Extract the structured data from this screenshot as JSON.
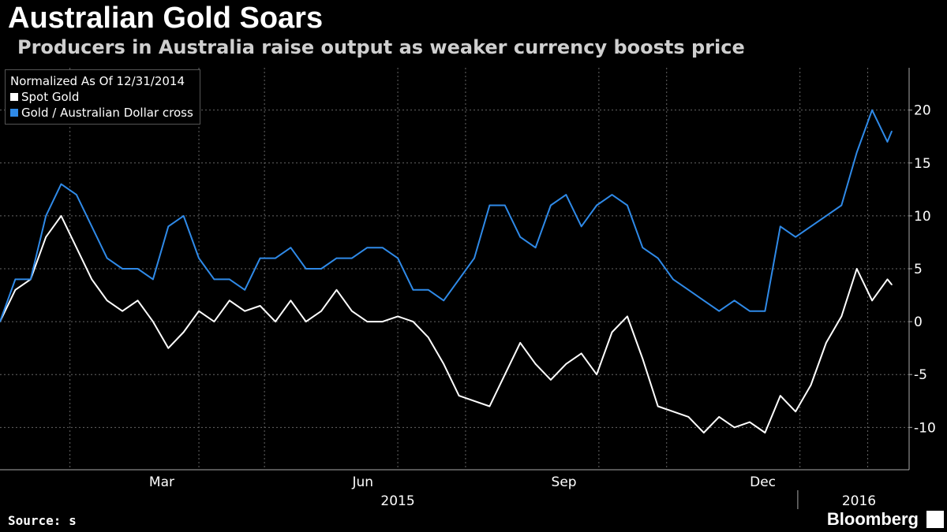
{
  "header": {
    "title": "Australian Gold Soars",
    "subtitle": "Producers in Australia raise output as weaker currency boosts price"
  },
  "footer": {
    "source": "Source: s",
    "brand": "Bloomberg"
  },
  "chart_data": {
    "type": "line",
    "legend_title": "Normalized As Of 12/31/2014",
    "legend_position": "top-left",
    "grid": true,
    "x_months": [
      "Mar",
      "Jun",
      "Sep",
      "Dec"
    ],
    "x_years": [
      "2015",
      "2016"
    ],
    "xlim": [
      "2014-12-31",
      "2016-02-12"
    ],
    "ylim": [
      -14,
      24
    ],
    "y_ticks": [
      -10,
      -5,
      0,
      5,
      10,
      15,
      20
    ],
    "colors": {
      "spot_gold": "#ffffff",
      "gold_aud": "#2f8ae8",
      "grid": "#666666",
      "background": "#000000"
    },
    "series": [
      {
        "name": "Spot Gold",
        "x": [
          "2014-12-31",
          "2015-01-07",
          "2015-01-14",
          "2015-01-21",
          "2015-01-28",
          "2015-02-04",
          "2015-02-11",
          "2015-02-18",
          "2015-02-25",
          "2015-03-04",
          "2015-03-11",
          "2015-03-18",
          "2015-03-25",
          "2015-04-01",
          "2015-04-08",
          "2015-04-15",
          "2015-04-22",
          "2015-04-29",
          "2015-05-06",
          "2015-05-13",
          "2015-05-20",
          "2015-05-27",
          "2015-06-03",
          "2015-06-10",
          "2015-06-17",
          "2015-06-24",
          "2015-07-01",
          "2015-07-08",
          "2015-07-15",
          "2015-07-22",
          "2015-07-29",
          "2015-08-05",
          "2015-08-12",
          "2015-08-19",
          "2015-08-26",
          "2015-09-02",
          "2015-09-09",
          "2015-09-16",
          "2015-09-23",
          "2015-09-30",
          "2015-10-07",
          "2015-10-14",
          "2015-10-21",
          "2015-10-28",
          "2015-11-04",
          "2015-11-11",
          "2015-11-18",
          "2015-11-25",
          "2015-12-02",
          "2015-12-09",
          "2015-12-16",
          "2015-12-23",
          "2015-12-30",
          "2016-01-06",
          "2016-01-13",
          "2016-01-20",
          "2016-01-27",
          "2016-02-03",
          "2016-02-10",
          "2016-02-12"
        ],
        "values": [
          0,
          3,
          4,
          8,
          10,
          7,
          4,
          2,
          1,
          2,
          0,
          -2.5,
          -1,
          1,
          0,
          2,
          1,
          1.5,
          0,
          2,
          0,
          1,
          3,
          1,
          0,
          0,
          0.5,
          0,
          -1.5,
          -4,
          -7,
          -7.5,
          -8,
          -5,
          -2,
          -4,
          -5.5,
          -4,
          -3,
          -5,
          -1,
          0.5,
          -3.5,
          -8,
          -8.5,
          -9,
          -10.5,
          -9,
          -10,
          -9.5,
          -10.5,
          -7,
          -8.5,
          -6,
          -2,
          0.5,
          5,
          2,
          4,
          3.5
        ]
      },
      {
        "name": "Gold / Australian Dollar cross",
        "x": [
          "2014-12-31",
          "2015-01-07",
          "2015-01-14",
          "2015-01-21",
          "2015-01-28",
          "2015-02-04",
          "2015-02-11",
          "2015-02-18",
          "2015-02-25",
          "2015-03-04",
          "2015-03-11",
          "2015-03-18",
          "2015-03-25",
          "2015-04-01",
          "2015-04-08",
          "2015-04-15",
          "2015-04-22",
          "2015-04-29",
          "2015-05-06",
          "2015-05-13",
          "2015-05-20",
          "2015-05-27",
          "2015-06-03",
          "2015-06-10",
          "2015-06-17",
          "2015-06-24",
          "2015-07-01",
          "2015-07-08",
          "2015-07-15",
          "2015-07-22",
          "2015-07-29",
          "2015-08-05",
          "2015-08-12",
          "2015-08-19",
          "2015-08-26",
          "2015-09-02",
          "2015-09-09",
          "2015-09-16",
          "2015-09-23",
          "2015-09-30",
          "2015-10-07",
          "2015-10-14",
          "2015-10-21",
          "2015-10-28",
          "2015-11-04",
          "2015-11-11",
          "2015-11-18",
          "2015-11-25",
          "2015-12-02",
          "2015-12-09",
          "2015-12-16",
          "2015-12-23",
          "2015-12-30",
          "2016-01-06",
          "2016-01-13",
          "2016-01-20",
          "2016-01-27",
          "2016-02-03",
          "2016-02-10",
          "2016-02-12"
        ],
        "values": [
          0,
          4,
          4,
          10,
          13,
          12,
          9,
          6,
          5,
          5,
          4,
          9,
          10,
          6,
          4,
          4,
          3,
          6,
          6,
          7,
          5,
          5,
          6,
          6,
          7,
          7,
          6,
          3,
          3,
          2,
          4,
          6,
          11,
          11,
          8,
          7,
          11,
          12,
          9,
          11,
          12,
          11,
          7,
          6,
          4,
          3,
          2,
          1,
          2,
          1,
          1,
          9,
          8,
          9,
          10,
          11,
          16,
          20,
          17,
          18
        ]
      }
    ]
  }
}
